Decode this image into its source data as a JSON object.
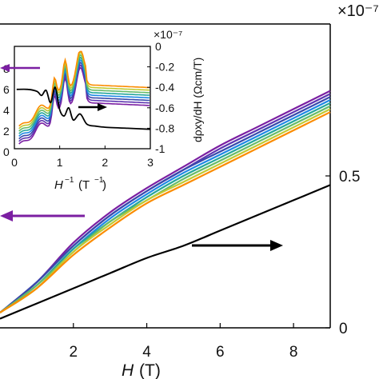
{
  "chart_data": [
    {
      "type": "line",
      "xlabel_var": "H",
      "xlabel_unit": "(T)",
      "xlim": [
        0,
        9
      ],
      "xticks": [
        "2",
        "4",
        "6",
        "8"
      ],
      "ylim_right": [
        0,
        1.0
      ],
      "yticks_right": [
        "0",
        "0.5"
      ],
      "y_right_multiplier": "×10⁻⁷",
      "colors": [
        "#7b1fa2",
        "#5e35b1",
        "#3949ab",
        "#1e88e5",
        "#26a69a",
        "#66bb6a",
        "#c0ca33",
        "#fb8c00"
      ],
      "series_colored": [
        {
          "x": [
            0,
            1,
            2,
            3,
            4,
            5,
            6,
            7,
            8,
            9
          ],
          "y": [
            0.05,
            0.15,
            0.28,
            0.38,
            0.46,
            0.53,
            0.6,
            0.66,
            0.72,
            0.78
          ]
        },
        {
          "x": [
            0,
            1,
            2,
            3,
            4,
            5,
            6,
            7,
            8,
            9
          ],
          "y": [
            0.05,
            0.15,
            0.27,
            0.37,
            0.45,
            0.52,
            0.59,
            0.65,
            0.71,
            0.77
          ]
        },
        {
          "x": [
            0,
            1,
            2,
            3,
            4,
            5,
            6,
            7,
            8,
            9
          ],
          "y": [
            0.05,
            0.15,
            0.27,
            0.37,
            0.45,
            0.52,
            0.58,
            0.64,
            0.7,
            0.76
          ]
        },
        {
          "x": [
            0,
            1,
            2,
            3,
            4,
            5,
            6,
            7,
            8,
            9
          ],
          "y": [
            0.05,
            0.14,
            0.26,
            0.36,
            0.44,
            0.51,
            0.57,
            0.63,
            0.69,
            0.75
          ]
        },
        {
          "x": [
            0,
            1,
            2,
            3,
            4,
            5,
            6,
            7,
            8,
            9
          ],
          "y": [
            0.05,
            0.14,
            0.26,
            0.35,
            0.43,
            0.5,
            0.56,
            0.62,
            0.68,
            0.74
          ]
        },
        {
          "x": [
            0,
            1,
            2,
            3,
            4,
            5,
            6,
            7,
            8,
            9
          ],
          "y": [
            0.05,
            0.14,
            0.25,
            0.35,
            0.42,
            0.49,
            0.55,
            0.61,
            0.67,
            0.73
          ]
        },
        {
          "x": [
            0,
            1,
            2,
            3,
            4,
            5,
            6,
            7,
            8,
            9
          ],
          "y": [
            0.05,
            0.13,
            0.25,
            0.34,
            0.42,
            0.48,
            0.54,
            0.6,
            0.66,
            0.72
          ]
        },
        {
          "x": [
            0,
            1,
            2,
            3,
            4,
            5,
            6,
            7,
            8,
            9
          ],
          "y": [
            0.05,
            0.13,
            0.24,
            0.33,
            0.41,
            0.47,
            0.53,
            0.59,
            0.65,
            0.71
          ]
        }
      ],
      "series_black": {
        "x": [
          0,
          1,
          2,
          3,
          4,
          5,
          6,
          7,
          8,
          9
        ],
        "y": [
          0.03,
          0.08,
          0.13,
          0.18,
          0.23,
          0.27,
          0.32,
          0.37,
          0.42,
          0.47
        ]
      }
    },
    {
      "type": "line",
      "inset": true,
      "xlabel_var": "H",
      "xlabel_unit": "(T",
      "xlim": [
        0,
        3
      ],
      "xticks": [
        "0",
        "1",
        "2",
        "3"
      ],
      "ylim_right": [
        -1,
        0
      ],
      "yticks_right": [
        "0",
        "-0.2",
        "-0.4",
        "-0.6",
        "-0.8",
        "-1"
      ],
      "ylabel_right": "dρxy/dH (Ωcm/T)",
      "y_right_multiplier": "×10⁻⁷",
      "yticks_left_partial": [
        "8",
        "6",
        "4",
        "2",
        "0"
      ],
      "peaks_H_inv": [
        0.88,
        1.12,
        1.45
      ],
      "black_curve": {
        "x": [
          0.05,
          0.3,
          0.5,
          0.6,
          0.7,
          0.8,
          0.9,
          1.0,
          1.1,
          1.2,
          1.3,
          1.45,
          1.6,
          1.8,
          2.0,
          2.5,
          3.0
        ],
        "y": [
          -0.42,
          -0.42,
          -0.44,
          -0.48,
          -0.43,
          -0.55,
          -0.4,
          -0.62,
          -0.68,
          -0.6,
          -0.72,
          -0.66,
          -0.76,
          -0.78,
          -0.79,
          -0.8,
          -0.81
        ]
      }
    }
  ]
}
